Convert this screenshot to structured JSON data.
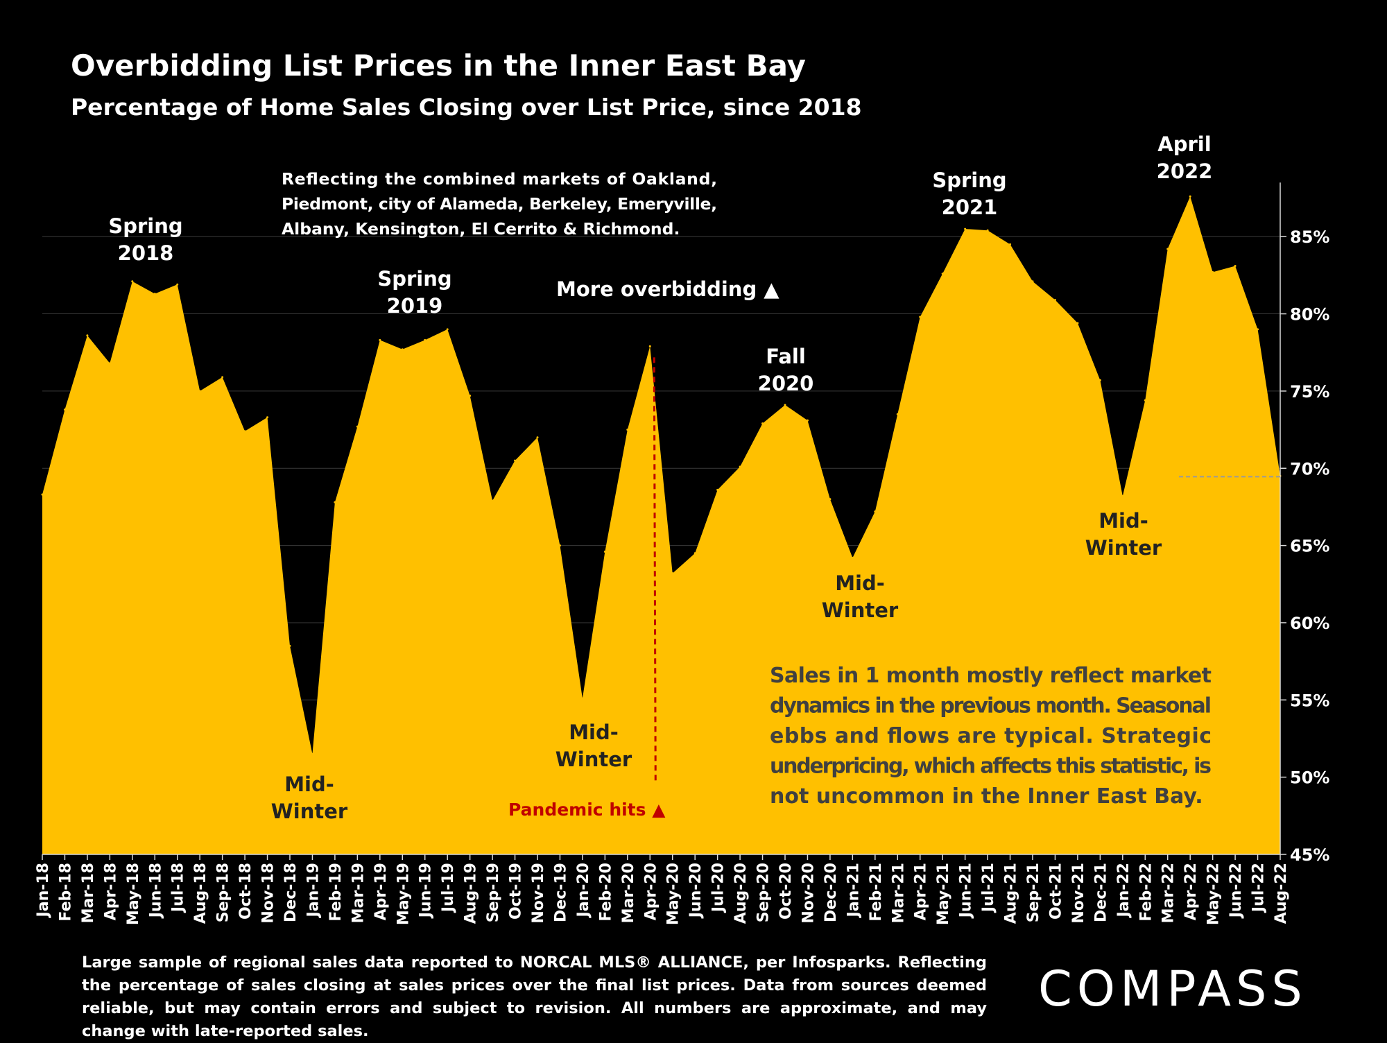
{
  "title": "Overbidding List Prices in the Inner East Bay",
  "subtitle": "Percentage of Home Sales Closing over List Price, since 2018",
  "footnote": "Large sample of regional sales data reported to NORCAL MLS® ALLIANCE, per Infosparks. Reflecting the percentage of sales closing at sales prices over the final list prices. Data from sources deemed reliable, but may contain errors and subject to revision. All numbers are approximate, and may change with late-reported sales.",
  "logo": "COMPASS",
  "colors": {
    "area": "#FFC000",
    "background": "#000000",
    "pandemic": "#C00000",
    "grid": "#3a3a3a"
  },
  "chart_data": {
    "type": "area",
    "x": [
      "Jan-18",
      "Feb-18",
      "Mar-18",
      "Apr-18",
      "May-18",
      "Jun-18",
      "Jul-18",
      "Aug-18",
      "Sep-18",
      "Oct-18",
      "Nov-18",
      "Dec-18",
      "Jan-19",
      "Feb-19",
      "Mar-19",
      "Apr-19",
      "May-19",
      "Jun-19",
      "Jul-19",
      "Aug-19",
      "Sep-19",
      "Oct-19",
      "Nov-19",
      "Dec-19",
      "Jan-20",
      "Feb-20",
      "Mar-20",
      "Apr-20",
      "May-20",
      "Jun-20",
      "Jul-20",
      "Aug-20",
      "Sep-20",
      "Oct-20",
      "Nov-20",
      "Dec-20",
      "Jan-21",
      "Feb-21",
      "Mar-21",
      "Apr-21",
      "May-21",
      "Jun-21",
      "Jul-21",
      "Aug-21",
      "Sep-21",
      "Oct-21",
      "Nov-21",
      "Dec-21",
      "Jan-22",
      "Feb-22",
      "Mar-22",
      "Apr-22",
      "May-22",
      "Jun-22",
      "Jul-22",
      "Aug-22"
    ],
    "series": [
      {
        "values": [
          68.3,
          73.8,
          78.6,
          76.8,
          82.1,
          81.3,
          81.9,
          75.0,
          75.9,
          72.4,
          73.3,
          58.5,
          51.5,
          67.8,
          72.7,
          78.3,
          77.7,
          78.3,
          79.0,
          74.7,
          67.9,
          70.5,
          72.0,
          65.0,
          55.1,
          64.6,
          72.5,
          77.9,
          63.2,
          64.5,
          68.6,
          70.1,
          72.9,
          74.1,
          73.1,
          68.0,
          64.2,
          67.2,
          73.5,
          79.8,
          82.6,
          85.5,
          85.4,
          84.5,
          82.1,
          80.9,
          79.4,
          75.7,
          68.2,
          74.4,
          84.2,
          87.6,
          82.7,
          83.1,
          79.0,
          69.5
        ]
      }
    ],
    "ylim": [
      45,
      88.5
    ],
    "yticks": [
      "45%",
      "50%",
      "55%",
      "60%",
      "65%",
      "70%",
      "75%",
      "80%",
      "85%"
    ],
    "y_axis_side": "right",
    "grid": true,
    "annotations": [
      {
        "lines": [
          "Spring",
          "2018"
        ]
      },
      {
        "lines": [
          "Mid-",
          "Winter"
        ]
      },
      {
        "lines": [
          "Spring",
          "2019"
        ]
      },
      {
        "lines": [
          "Mid-",
          "Winter"
        ]
      },
      {
        "lines": [
          "Fall",
          "2020"
        ]
      },
      {
        "lines": [
          "Mid-",
          "Winter"
        ]
      },
      {
        "lines": [
          "Spring",
          "2021"
        ]
      },
      {
        "lines": [
          "Mid-",
          "Winter"
        ]
      },
      {
        "lines": [
          "April",
          "2022"
        ]
      }
    ],
    "note_markets": [
      "Reflecting the combined markets of Oakland,",
      "Piedmont, city of Alameda, Berkeley, Emeryville,",
      "Albany, Kensington, El Cerrito & Richmond."
    ],
    "note_more_overbidding": "More overbidding ▲",
    "note_pandemic": "Pandemic hits ▲",
    "note_sales": [
      "Sales in 1 month mostly reflect market",
      "dynamics in the previous month. Seasonal",
      "ebbs and flows are typical. Strategic",
      "underpricing, which affects this statistic, is",
      "not uncommon in the Inner East Bay."
    ]
  }
}
